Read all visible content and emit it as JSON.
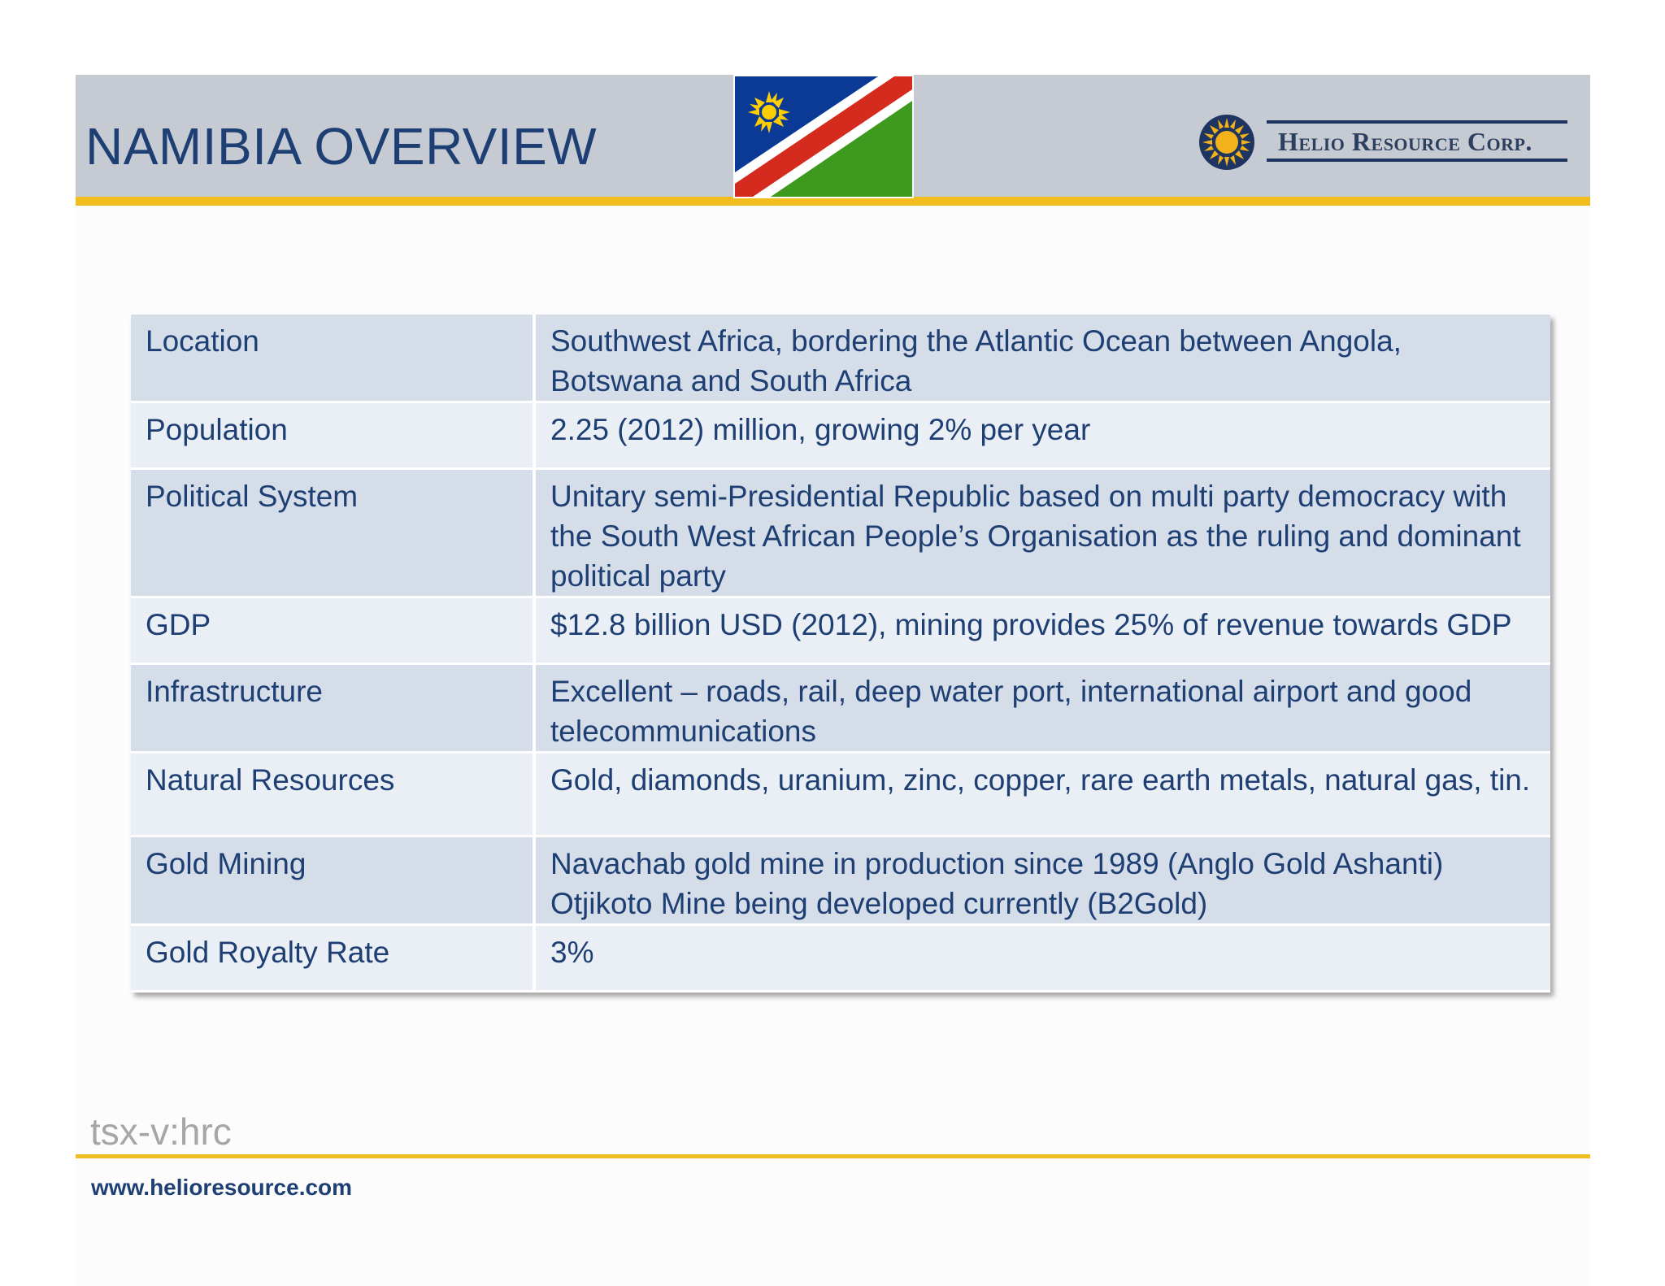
{
  "header": {
    "title": "NAMIBIA OVERVIEW",
    "flag_icon": "namibia-flag-icon",
    "logo_icon": "sun-logo-icon",
    "logo_text": "Helio Resource Corp."
  },
  "colors": {
    "title": "#1e3f73",
    "accent_rule": "#f2be1f",
    "header_band": "#c6cbd3",
    "row_dark": "#d5dde9",
    "row_light": "#eaeef5"
  },
  "table": {
    "rows": [
      {
        "label": "Location",
        "value": "Southwest Africa, bordering the Atlantic Ocean between Angola, Botswana and South Africa"
      },
      {
        "label": "Population",
        "value": "2.25 (2012) million, growing 2% per year"
      },
      {
        "label": "Political System",
        "value": "Unitary semi-Presidential Republic based on multi party democracy with the South West African People’s Organisation as the ruling and dominant political party"
      },
      {
        "label": "GDP",
        "value": "$12.8 billion USD (2012), mining provides 25% of revenue towards GDP"
      },
      {
        "label": "Infrastructure",
        "value": "Excellent – roads, rail, deep water port, international airport and good telecommunications"
      },
      {
        "label": "Natural Resources",
        "value": "Gold, diamonds, uranium, zinc, copper, rare earth metals, natural gas, tin."
      },
      {
        "label": "Gold Mining",
        "value": "Navachab gold mine in production since 1989 (Anglo Gold Ashanti) Otjikoto Mine being developed currently (B2Gold)"
      },
      {
        "label": "Gold Royalty Rate",
        "value": "3%"
      }
    ]
  },
  "footer": {
    "ticker": "tsx-v:hrc",
    "url": "www.helioresource.com"
  }
}
